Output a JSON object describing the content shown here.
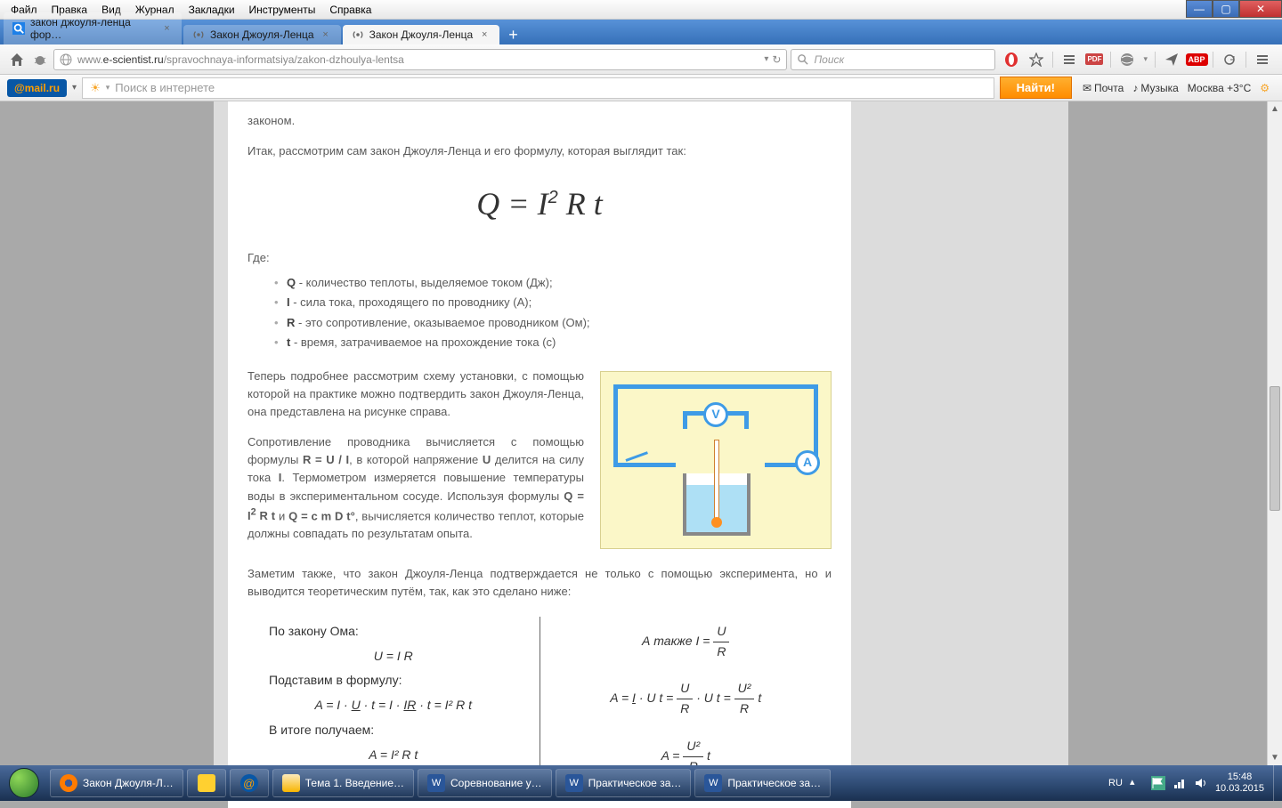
{
  "window_controls": {
    "min": "—",
    "max": "▢",
    "close": "✕"
  },
  "menubar": [
    "Файл",
    "Правка",
    "Вид",
    "Журнал",
    "Закладки",
    "Инструменты",
    "Справка"
  ],
  "tabs": [
    {
      "label": "закон джоуля-ленца фор…",
      "active": false
    },
    {
      "label": "Закон Джоуля-Ленца",
      "active": false
    },
    {
      "label": "Закон Джоуля-Ленца",
      "active": true
    }
  ],
  "url": {
    "prefix": "www.",
    "domain": "e-scientist.ru",
    "path": "/spravochnaya-informatsiya/zakon-dzhoulya-lentsa"
  },
  "search_placeholder": "Поиск",
  "mailbar": {
    "logo": "@mail.ru",
    "search_placeholder": "Поиск в интернете",
    "find": "Найти!",
    "mail": "Почта",
    "music": "Музыка",
    "weather": "Москва +3°C"
  },
  "side_handle": "▶▶",
  "article": {
    "trailing": "законом.",
    "intro": "Итак, рассмотрим сам закон Джоуля-Ленца и его формулу, которая выглядит так:",
    "formula_html": "Q = I<sup>2</sup> R t",
    "where": "Где:",
    "defs": [
      {
        "sym": "Q",
        "txt": " - количество теплоты, выделяемое током (Дж);"
      },
      {
        "sym": "I",
        "txt": " - сила тока, проходящего по проводнику (А);"
      },
      {
        "sym": "R",
        "txt": " - это сопротивление, оказываемое проводником (Ом);"
      },
      {
        "sym": "t",
        "txt": " - время, затрачиваемое на прохождение тока (с)"
      }
    ],
    "p_setup": "Теперь подробнее рассмотрим схему установки, с помощью которой на практике можно подтвердить закон Джоуля-Ленца, она представлена на рисунке справа.",
    "p_calc": "Сопротивление проводника вычисляется с помощью формулы <b>R = U / I</b>, в которой напряжение <b>U</b> делится на силу тока <b>I</b>. Термометром измеряется повышение температуры воды в экспериментальном сосуде. Используя формулы <b>Q = I<sup>2</sup> R t</b> и <b>Q = c m D t°</b>, вычисляется количество теплот, которые должны совпадать по результатам опыта.",
    "p_note": "Заметим также, что закон Джоуля-Ленца подтверждается не только с помощью эксперимента, но и выводится теоретическим путём, так, как это сделано ниже:",
    "deriv_left": {
      "l1": "По закону Ома:",
      "eq1": "U = I R",
      "l2": "Подставим в формулу:",
      "eq2": "A = I · <u>U</u> · t = I · <u>IR</u> · t = I² R t",
      "l3": "В итоге получаем:",
      "eq3": "A = I² R t"
    },
    "deriv_right": {
      "l1_pre": "А также  I = ",
      "frac1_n": "U",
      "frac1_d": "R",
      "eq2_pre": "A = <u>I</u> · U t = ",
      "frac2a_n": "U",
      "frac2a_d": "R",
      "eq2_mid": " · U t = ",
      "frac2b_n": "U²",
      "frac2b_d": "R",
      "eq2_suf": " t",
      "eq3_pre": "A = ",
      "frac3_n": "U²",
      "frac3_d": "R",
      "eq3_suf": " t"
    }
  },
  "taskbar": {
    "items": [
      {
        "label": "Закон Джоуля-Л…",
        "color": "#ff7b00"
      },
      {
        "label": "",
        "color": "#ffd030",
        "pinned": true
      },
      {
        "label": "",
        "color": "#0857a6",
        "pinned": true
      },
      {
        "label": "Тема 1. Введение…",
        "color": "#f6d784"
      },
      {
        "label": "Соревнование у…",
        "color": "#2a5699"
      },
      {
        "label": "Практическое за…",
        "color": "#2a5699"
      },
      {
        "label": "Практическое за…",
        "color": "#2a5699"
      }
    ],
    "lang": "RU",
    "time": "15:48",
    "date": "10.03.2015"
  },
  "colors": {
    "page_bg": "#a9a9a9",
    "tab_active": "#f5f5f5",
    "accent_blue": "#3e9be6"
  }
}
